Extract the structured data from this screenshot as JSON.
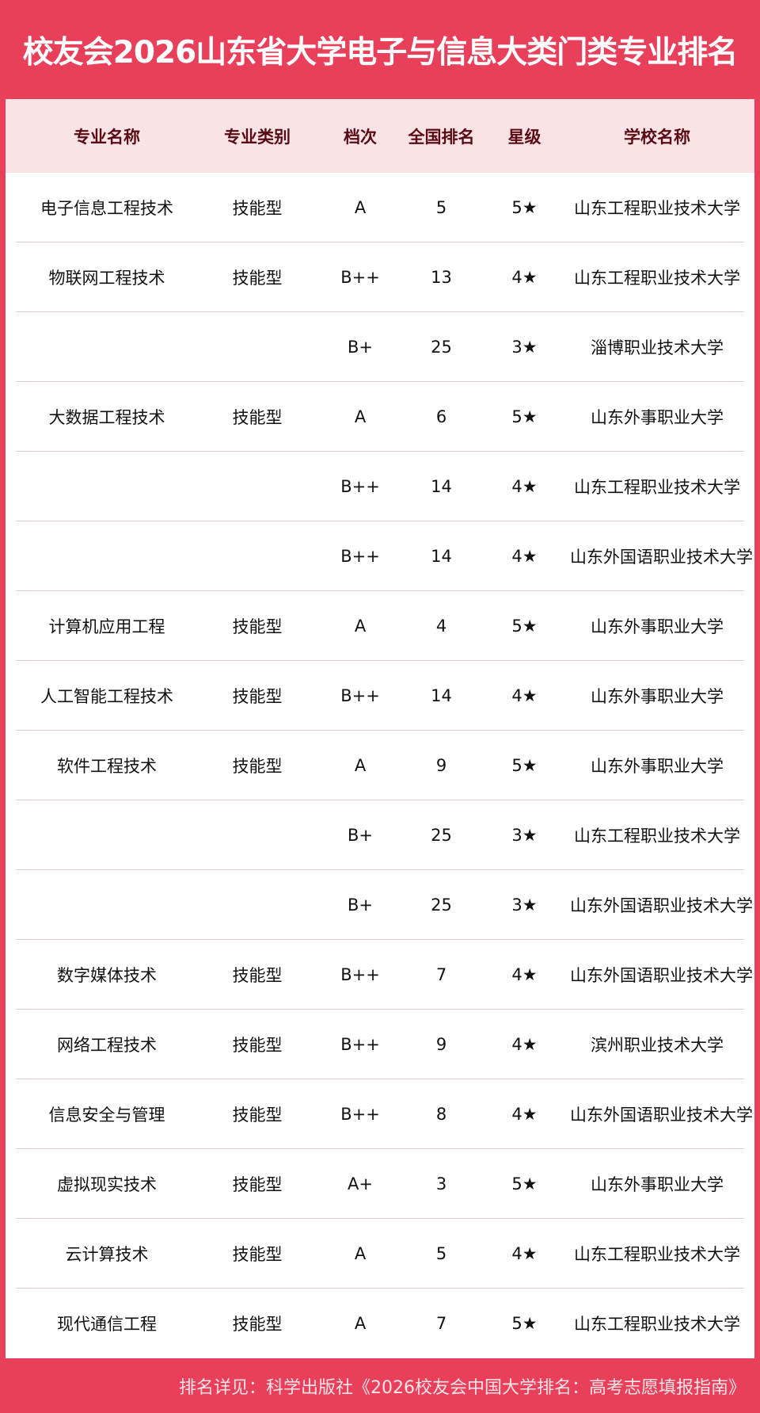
{
  "title": "校友会2026山东省大学电子与信息大类门类专业排名",
  "headers": [
    "专业名称",
    "专业类别",
    "档次",
    "全国排名",
    "星级",
    "学校名称"
  ],
  "rows": [
    [
      "电子信息工程技术",
      "技能型",
      "A",
      "5",
      "5★",
      "山东工程职业技术大学"
    ],
    [
      "物联网工程技术",
      "技能型",
      "B++",
      "13",
      "4★",
      "山东工程职业技术大学"
    ],
    [
      "",
      "",
      "B+",
      "25",
      "3★",
      "淄博职业技术大学"
    ],
    [
      "大数据工程技术",
      "技能型",
      "A",
      "6",
      "5★",
      "山东外事职业大学"
    ],
    [
      "",
      "",
      "B++",
      "14",
      "4★",
      "山东工程职业技术大学"
    ],
    [
      "",
      "",
      "B++",
      "14",
      "4★",
      "山东外国语职业技术大学"
    ],
    [
      "计算机应用工程",
      "技能型",
      "A",
      "4",
      "5★",
      "山东外事职业大学"
    ],
    [
      "人工智能工程技术",
      "技能型",
      "B++",
      "14",
      "4★",
      "山东外事职业大学"
    ],
    [
      "软件工程技术",
      "技能型",
      "A",
      "9",
      "5★",
      "山东外事职业大学"
    ],
    [
      "",
      "",
      "B+",
      "25",
      "3★",
      "山东工程职业技术大学"
    ],
    [
      "",
      "",
      "B+",
      "25",
      "3★",
      "山东外国语职业技术大学"
    ],
    [
      "数字媒体技术",
      "技能型",
      "B++",
      "7",
      "4★",
      "山东外国语职业技术大学"
    ],
    [
      "网络工程技术",
      "技能型",
      "B++",
      "9",
      "4★",
      "滨州职业技术大学"
    ],
    [
      "信息安全与管理",
      "技能型",
      "B++",
      "8",
      "4★",
      "山东外国语职业技术大学"
    ],
    [
      "虚拟现实技术",
      "技能型",
      "A+",
      "3",
      "5★",
      "山东外事职业大学"
    ],
    [
      "云计算技术",
      "技能型",
      "A",
      "5",
      "4★",
      "山东工程职业技术大学"
    ],
    [
      "现代通信工程",
      "技能型",
      "A",
      "7",
      "5★",
      "山东工程职业技术大学"
    ]
  ],
  "footer": "排名详见：科学出版社《2026校友会中国大学排名：高考志愿填报指南》",
  "colors": {
    "brand": "#e8405a",
    "header_bg": "#f9e3e5",
    "header_text": "#5a0a14"
  }
}
